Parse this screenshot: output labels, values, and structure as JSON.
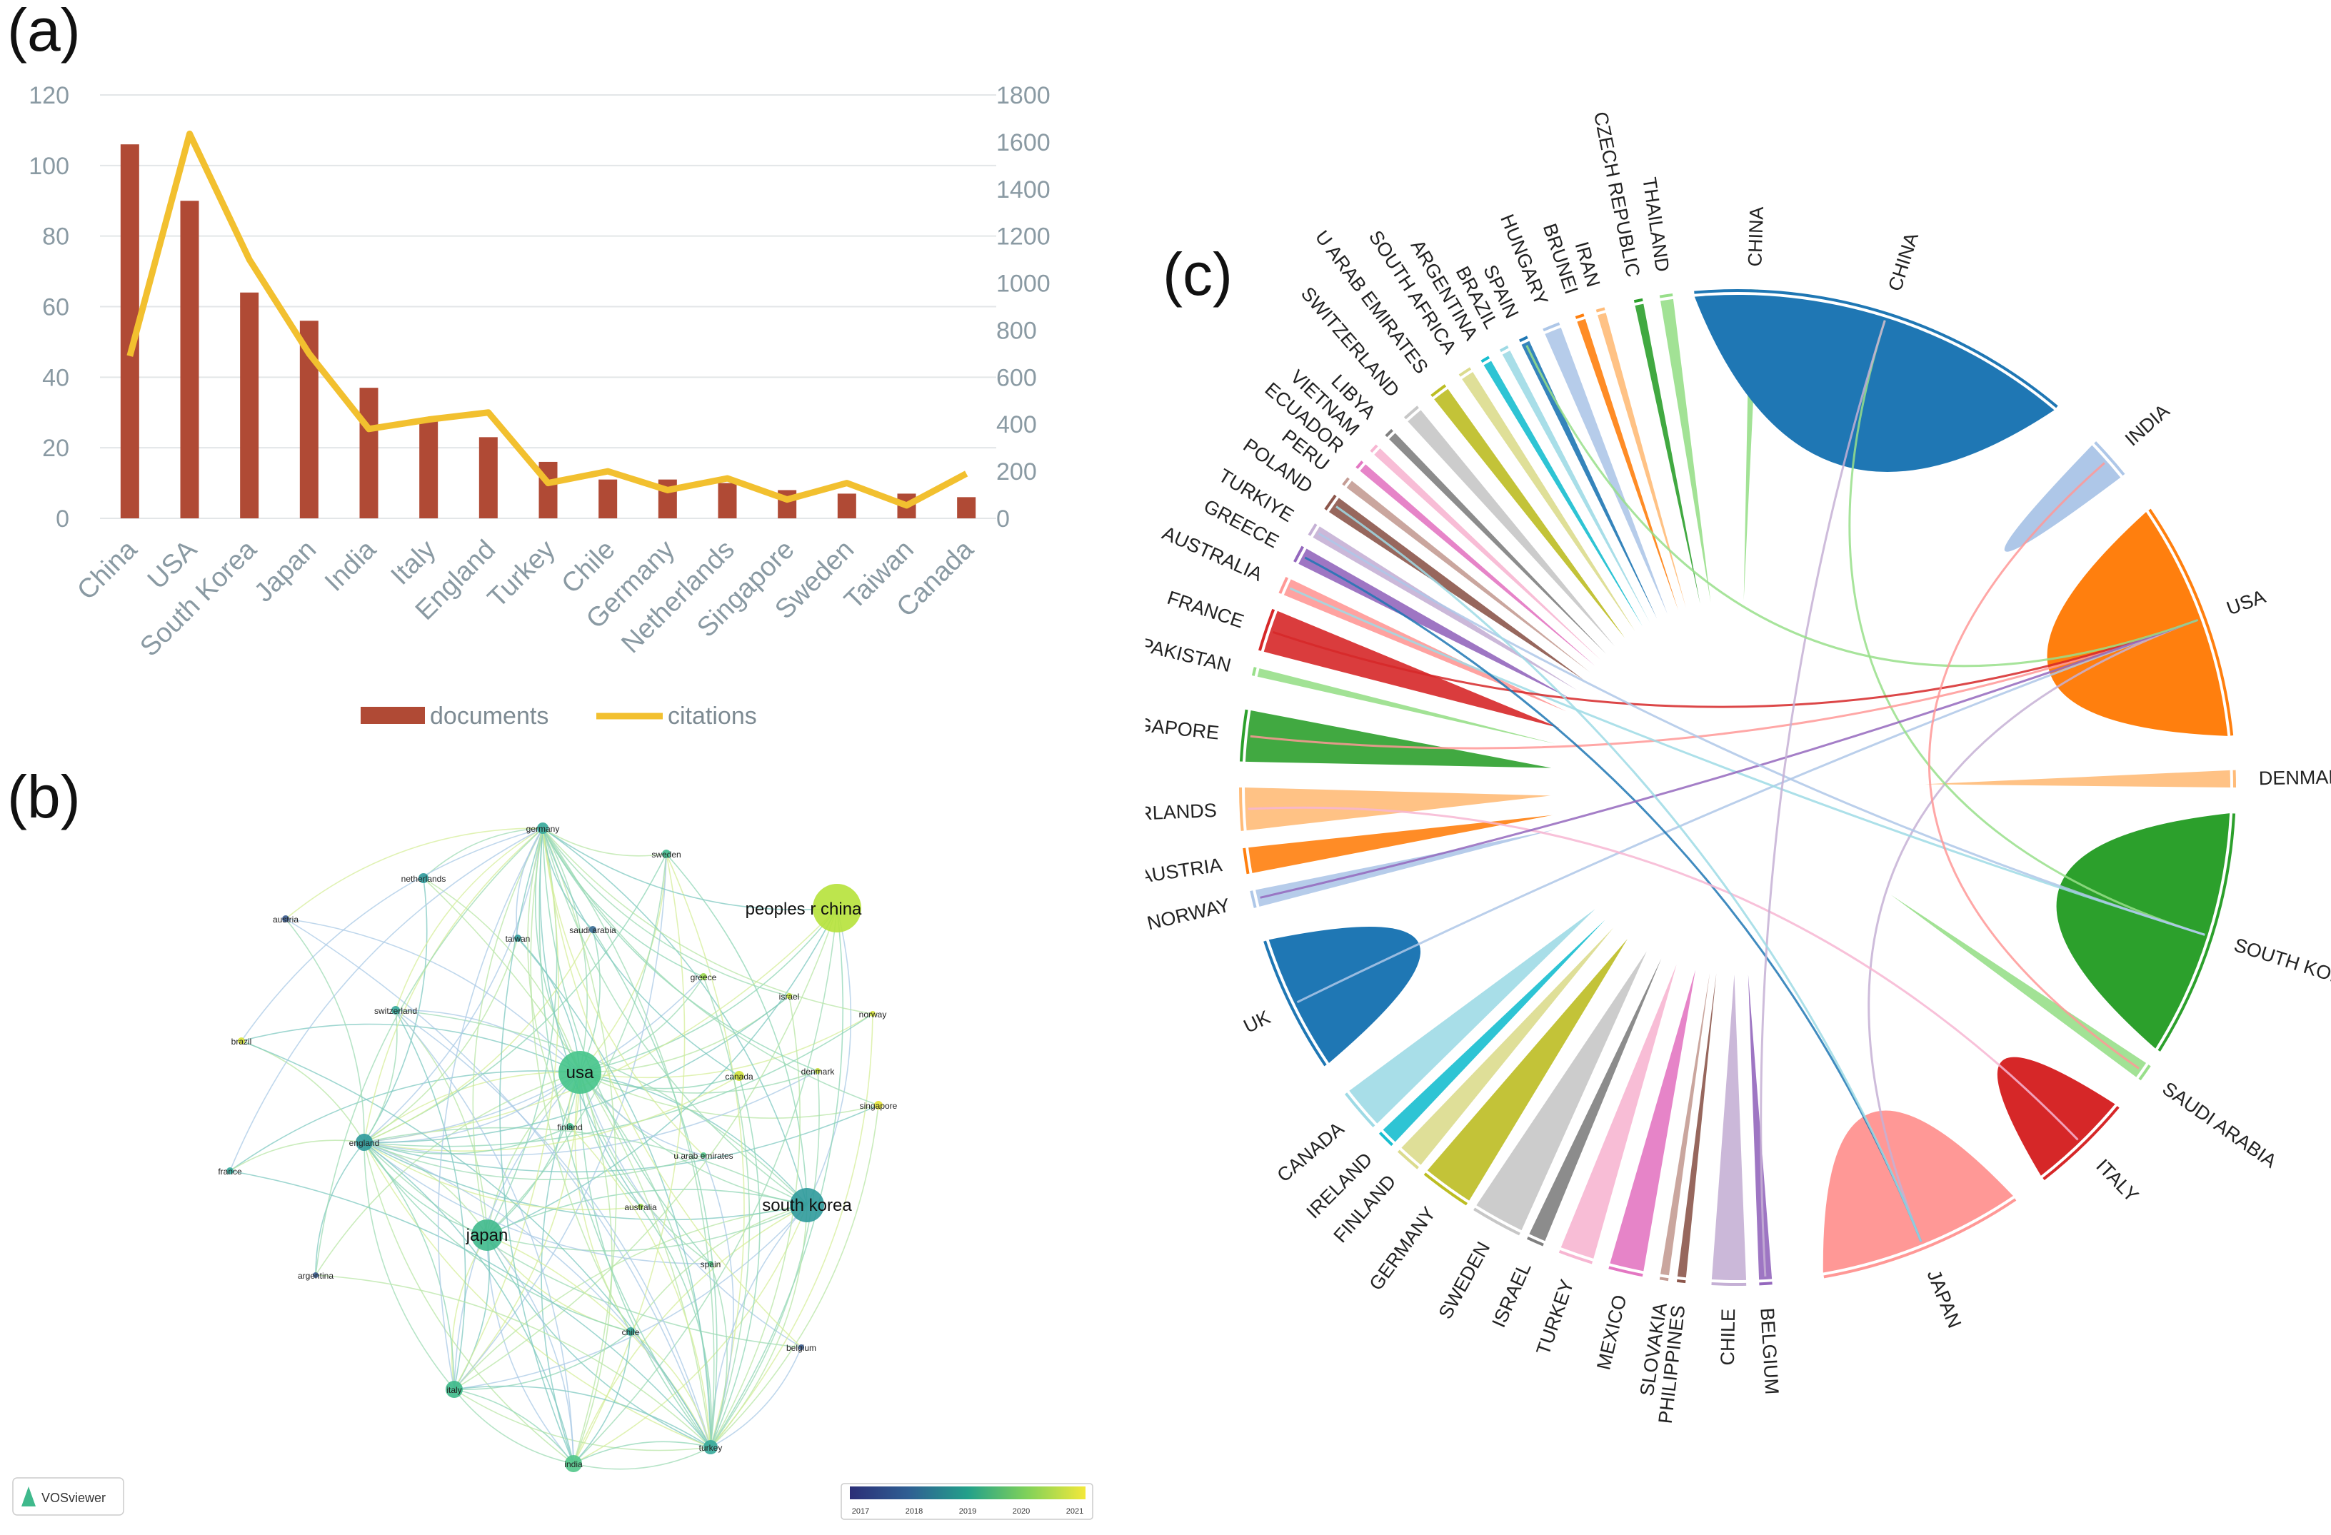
{
  "panels": {
    "a": "(a)",
    "b": "(b)",
    "c": "(c)"
  },
  "chart_data": [
    {
      "type": "bar",
      "panel": "a",
      "categories": [
        "China",
        "USA",
        "South Korea",
        "Japan",
        "India",
        "Italy",
        "England",
        "Turkey",
        "Chile",
        "Germany",
        "Netherlands",
        "Singapore",
        "Sweden",
        "Taiwan",
        "Canada"
      ],
      "series": [
        {
          "name": "documents",
          "kind": "bar",
          "axis": "left",
          "color": "#b04a35",
          "values": [
            106,
            90,
            64,
            56,
            37,
            28,
            23,
            16,
            11,
            11,
            10,
            8,
            7,
            7,
            6
          ]
        },
        {
          "name": "citations",
          "kind": "line",
          "axis": "right",
          "color": "#f2c02f",
          "values": [
            690,
            1635,
            1100,
            700,
            380,
            420,
            450,
            150,
            200,
            120,
            170,
            80,
            150,
            55,
            190
          ]
        }
      ],
      "y_left": {
        "lim": [
          0,
          120
        ],
        "ticks": [
          "0",
          "20",
          "40",
          "60",
          "80",
          "100",
          "120"
        ]
      },
      "y_right": {
        "lim": [
          0,
          1800
        ],
        "ticks": [
          "0",
          "200",
          "400",
          "600",
          "800",
          "1000",
          "1200",
          "1400",
          "1600",
          "1800"
        ]
      },
      "legend": {
        "position": "bottom",
        "items": [
          "documents",
          "citations"
        ]
      }
    },
    {
      "type": "network",
      "panel": "b",
      "software": "VOSviewer",
      "nodes": [
        {
          "label": "peoples r china",
          "size": "large",
          "color": "#b6e23a"
        },
        {
          "label": "usa",
          "size": "large",
          "color": "#45c48a"
        },
        {
          "label": "south korea",
          "size": "large",
          "color": "#2f9a9b"
        },
        {
          "label": "japan",
          "size": "large",
          "color": "#3fb98c"
        },
        {
          "label": "england",
          "size": "small",
          "color": "#2f9a9b"
        },
        {
          "label": "italy",
          "size": "small",
          "color": "#3db98a"
        },
        {
          "label": "india",
          "size": "small",
          "color": "#52c68a"
        },
        {
          "label": "turkey",
          "size": "small",
          "color": "#35a99a"
        },
        {
          "label": "germany",
          "size": "small",
          "color": "#35a99a"
        },
        {
          "label": "netherlands",
          "size": "small",
          "color": "#2f9a9b"
        },
        {
          "label": "sweden",
          "size": "small",
          "color": "#3fb98c"
        },
        {
          "label": "austria",
          "size": "small",
          "color": "#3a5b8f"
        },
        {
          "label": "taiwan",
          "size": "small",
          "color": "#2f9a9b"
        },
        {
          "label": "saudi arabia",
          "size": "small",
          "color": "#3b6b95"
        },
        {
          "label": "greece",
          "size": "small",
          "color": "#9ad94b"
        },
        {
          "label": "israel",
          "size": "small",
          "color": "#c8e444"
        },
        {
          "label": "norway",
          "size": "small",
          "color": "#dbe83a"
        },
        {
          "label": "switzerland",
          "size": "small",
          "color": "#35a99a"
        },
        {
          "label": "brazil",
          "size": "small",
          "color": "#d9e43a"
        },
        {
          "label": "canada",
          "size": "small",
          "color": "#d0e23a"
        },
        {
          "label": "denmark",
          "size": "small",
          "color": "#c6e03f"
        },
        {
          "label": "singapore",
          "size": "small",
          "color": "#e6e336"
        },
        {
          "label": "finland",
          "size": "small",
          "color": "#3fb98c"
        },
        {
          "label": "u arab emirates",
          "size": "small",
          "color": "#52c68a"
        },
        {
          "label": "france",
          "size": "small",
          "color": "#35a99a"
        },
        {
          "label": "australia",
          "size": "small",
          "color": "#9ad94b"
        },
        {
          "label": "spain",
          "size": "small",
          "color": "#52c68a"
        },
        {
          "label": "argentina",
          "size": "small",
          "color": "#3a5b8f"
        },
        {
          "label": "chile",
          "size": "small",
          "color": "#35a99a"
        },
        {
          "label": "belgium",
          "size": "small",
          "color": "#3a5b8f"
        }
      ],
      "colorbar": {
        "ticks": [
          "2017",
          "2018",
          "2019",
          "2020",
          "2021"
        ],
        "colors": [
          "#2c2f77",
          "#2f5f93",
          "#23a08a",
          "#7fd15a",
          "#f3e83a"
        ]
      }
    },
    {
      "type": "chord",
      "panel": "c",
      "countries": [
        {
          "label": "CHINA",
          "color": "#98df8a"
        },
        {
          "label": "INDIA",
          "color": "#aec7e8"
        },
        {
          "label": "USA",
          "color": "#ff7f0e"
        },
        {
          "label": "DENMARK",
          "color": "#ffbb78"
        },
        {
          "label": "SOUTH KOREA",
          "color": "#2ca02c"
        },
        {
          "label": "SAUDI ARABIA",
          "color": "#98df8a"
        },
        {
          "label": "ITALY",
          "color": "#d62728"
        },
        {
          "label": "JAPAN",
          "color": "#ff9896"
        },
        {
          "label": "BELGIUM",
          "color": "#9467bd"
        },
        {
          "label": "CHILE",
          "color": "#c5b0d5"
        },
        {
          "label": "PHILIPPINES",
          "color": "#8c564b"
        },
        {
          "label": "SLOVAKIA",
          "color": "#c49c94"
        },
        {
          "label": "MEXICO",
          "color": "#e377c2"
        },
        {
          "label": "TURKEY",
          "color": "#f7b6d2"
        },
        {
          "label": "ISRAEL",
          "color": "#7f7f7f"
        },
        {
          "label": "SWEDEN",
          "color": "#c7c7c7"
        },
        {
          "label": "GERMANY",
          "color": "#bcbd22"
        },
        {
          "label": "FINLAND",
          "color": "#dbdb8d"
        },
        {
          "label": "IRELAND",
          "color": "#17becf"
        },
        {
          "label": "CANADA",
          "color": "#9edae5"
        },
        {
          "label": "UK",
          "color": "#1f77b4"
        },
        {
          "label": "NORWAY",
          "color": "#aec7e8"
        },
        {
          "label": "AUSTRIA",
          "color": "#ff7f0e"
        },
        {
          "label": "NETHERLANDS",
          "color": "#ffbb78"
        },
        {
          "label": "SINGAPORE",
          "color": "#2ca02c"
        },
        {
          "label": "PAKISTAN",
          "color": "#98df8a"
        },
        {
          "label": "FRANCE",
          "color": "#d62728"
        },
        {
          "label": "AUSTRALIA",
          "color": "#ff9896"
        },
        {
          "label": "GREECE",
          "color": "#9467bd"
        },
        {
          "label": "TURKIYE",
          "color": "#c5b0d5"
        },
        {
          "label": "POLAND",
          "color": "#8c564b"
        },
        {
          "label": "PERU",
          "color": "#c49c94"
        },
        {
          "label": "ECUADOR",
          "color": "#e377c2"
        },
        {
          "label": "VIETNAM",
          "color": "#f7b6d2"
        },
        {
          "label": "LIBYA",
          "color": "#7f7f7f"
        },
        {
          "label": "SWITZERLAND",
          "color": "#c7c7c7"
        },
        {
          "label": "U ARAB EMIRATES",
          "color": "#bcbd22"
        },
        {
          "label": "SOUTH AFRICA",
          "color": "#dbdb8d"
        },
        {
          "label": "ARGENTINA",
          "color": "#17becf"
        },
        {
          "label": "BRAZIL",
          "color": "#9edae5"
        },
        {
          "label": "SPAIN",
          "color": "#1f77b4"
        },
        {
          "label": "HUNGARY",
          "color": "#aec7e8"
        },
        {
          "label": "BRUNEI",
          "color": "#ff7f0e"
        },
        {
          "label": "IRAN",
          "color": "#ffbb78"
        },
        {
          "label": "CZECH REPUBLIC",
          "color": "#2ca02c"
        },
        {
          "label": "THAILAND",
          "color": "#98df8a"
        },
        {
          "label": "CHINA ",
          "color": "#1f77b4"
        }
      ]
    }
  ]
}
